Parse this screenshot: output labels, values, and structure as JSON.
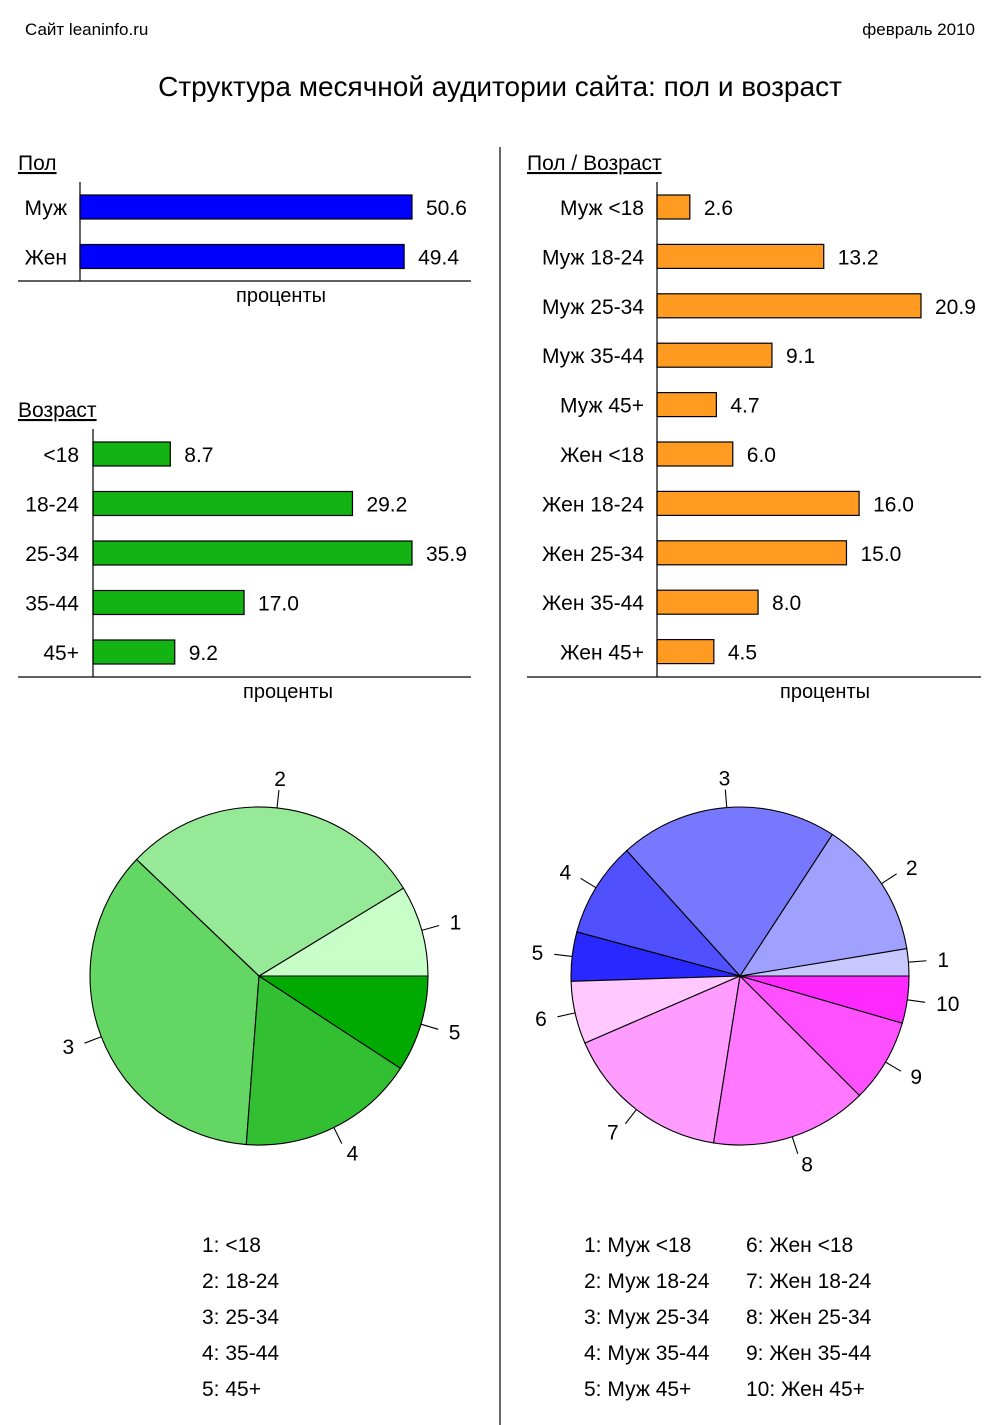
{
  "header": {
    "site": "Сайт leaninfo.ru",
    "date": "февраль 2010",
    "title": "Структура месячной аудитории сайта: пол и возраст"
  },
  "colors": {
    "gender_bar": "#0000ff",
    "age_bar": "#12b312",
    "gender_age_bar": "#ff9b21",
    "age_pie": [
      "#c8fec8",
      "#96e996",
      "#64d664",
      "#32c032",
      "#00aa00"
    ],
    "gender_age_pie": [
      "#c8c8ff",
      "#a0a0ff",
      "#7878ff",
      "#5050ff",
      "#2828ff",
      "#ffc8ff",
      "#ff9cff",
      "#ff78ff",
      "#ff50ff",
      "#ff28ff"
    ]
  },
  "chart_data": [
    {
      "type": "bar",
      "orientation": "horizontal",
      "title": "Пол",
      "xlabel": "проценты",
      "categories": [
        "Муж",
        "Жен"
      ],
      "values": [
        50.6,
        49.4
      ]
    },
    {
      "type": "bar",
      "orientation": "horizontal",
      "title": "Возраст",
      "xlabel": "проценты",
      "categories": [
        "<18",
        "18-24",
        "25-34",
        "35-44",
        "45+"
      ],
      "values": [
        8.7,
        29.2,
        35.9,
        17.0,
        9.2
      ]
    },
    {
      "type": "bar",
      "orientation": "horizontal",
      "title": "Пол / Возраст",
      "xlabel": "проценты",
      "categories": [
        "Муж <18",
        "Муж 18-24",
        "Муж 25-34",
        "Муж 35-44",
        "Муж 45+",
        "Жен <18",
        "Жен 18-24",
        "Жен 25-34",
        "Жен 35-44",
        "Жен 45+"
      ],
      "values": [
        2.6,
        13.2,
        20.9,
        9.1,
        4.7,
        6.0,
        16.0,
        15.0,
        8.0,
        4.5
      ]
    },
    {
      "type": "pie",
      "slice_labels": [
        "1",
        "2",
        "3",
        "4",
        "5"
      ],
      "values": [
        8.7,
        29.2,
        35.9,
        17.0,
        9.2
      ],
      "legend": [
        "1: <18",
        "2: 18-24",
        "3: 25-34",
        "4: 35-44",
        "5: 45+"
      ]
    },
    {
      "type": "pie",
      "slice_labels": [
        "1",
        "2",
        "3",
        "4",
        "5",
        "6",
        "7",
        "8",
        "9",
        "10"
      ],
      "values": [
        2.6,
        13.2,
        20.9,
        9.1,
        4.7,
        6.0,
        16.0,
        15.0,
        8.0,
        4.5
      ],
      "legend": [
        "1: Муж <18",
        "2: Муж 18-24",
        "3: Муж 25-34",
        "4: Муж 35-44",
        "5: Муж 45+",
        "6: Жен <18",
        "7: Жен 18-24",
        "8: Жен 25-34",
        "9: Жен 35-44",
        "10: Жен 45+"
      ]
    }
  ]
}
